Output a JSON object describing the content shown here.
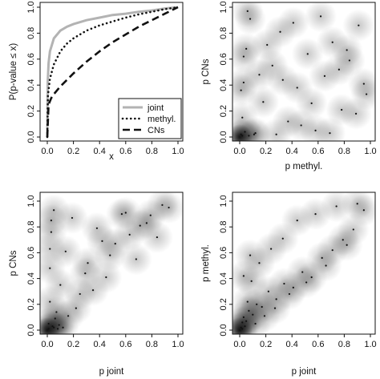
{
  "chart_data": [
    {
      "type": "line",
      "panel": "ecdf",
      "xlabel": "x",
      "ylabel": "P(p-value ≤ x)",
      "xlim": [
        0,
        1
      ],
      "ylim": [
        0,
        1
      ],
      "xticks": [
        "0.0",
        "0.2",
        "0.4",
        "0.6",
        "0.8",
        "1.0"
      ],
      "yticks": [
        "0.0",
        "0.2",
        "0.4",
        "0.6",
        "0.8",
        "1.0"
      ],
      "grid": false,
      "legend_position": "bottom-right",
      "series": [
        {
          "name": "joint",
          "style": "solid",
          "color": "#b3b3b3",
          "x": [
            0.0,
            0.003,
            0.01,
            0.02,
            0.05,
            0.1,
            0.15,
            0.2,
            0.3,
            0.4,
            0.5,
            0.6,
            0.7,
            0.8,
            0.9,
            1.0
          ],
          "y": [
            0.0,
            0.42,
            0.57,
            0.66,
            0.76,
            0.82,
            0.85,
            0.87,
            0.9,
            0.92,
            0.94,
            0.95,
            0.965,
            0.975,
            0.99,
            1.0
          ]
        },
        {
          "name": "methyl.",
          "style": "dotted",
          "color": "#111111",
          "x": [
            0.0,
            0.005,
            0.02,
            0.05,
            0.1,
            0.15,
            0.2,
            0.3,
            0.4,
            0.5,
            0.6,
            0.7,
            0.8,
            0.9,
            1.0
          ],
          "y": [
            0.0,
            0.32,
            0.45,
            0.56,
            0.66,
            0.72,
            0.76,
            0.82,
            0.86,
            0.89,
            0.92,
            0.945,
            0.965,
            0.985,
            1.0
          ]
        },
        {
          "name": "CNs",
          "style": "dashed",
          "color": "#111111",
          "x": [
            0.0,
            0.01,
            0.03,
            0.05,
            0.1,
            0.15,
            0.2,
            0.3,
            0.4,
            0.5,
            0.6,
            0.7,
            0.8,
            0.9,
            1.0
          ],
          "y": [
            0.0,
            0.25,
            0.3,
            0.33,
            0.39,
            0.44,
            0.49,
            0.58,
            0.66,
            0.73,
            0.79,
            0.85,
            0.9,
            0.95,
            1.0
          ]
        }
      ]
    },
    {
      "type": "scatter",
      "panel": "methyl-vs-cns",
      "xlabel": "p methyl.",
      "ylabel": "p CNs",
      "xlim": [
        0,
        1
      ],
      "ylim": [
        0,
        1
      ],
      "xticks": [
        "0.0",
        "0.2",
        "0.4",
        "0.6",
        "0.8",
        "1.0"
      ],
      "yticks": [
        "0.0",
        "0.2",
        "0.4",
        "0.6",
        "0.8",
        "1.0"
      ],
      "background": "smoothed point density (grayscale)",
      "points": {
        "x": [
          0.01,
          0.02,
          0.03,
          0.05,
          0.08,
          0.12,
          0.18,
          0.25,
          0.31,
          0.37,
          0.44,
          0.52,
          0.58,
          0.65,
          0.71,
          0.78,
          0.84,
          0.91,
          0.97,
          0.02,
          0.04,
          0.06,
          0.11,
          0.21,
          0.33,
          0.47,
          0.62,
          0.76,
          0.89,
          0.01,
          0.03,
          0.15,
          0.28,
          0.41,
          0.55,
          0.69,
          0.82,
          0.95,
          0.07
        ],
        "y": [
          0.02,
          0.15,
          0.42,
          0.68,
          0.91,
          0.03,
          0.27,
          0.55,
          0.81,
          0.12,
          0.38,
          0.64,
          0.05,
          0.47,
          0.73,
          0.21,
          0.59,
          0.86,
          0.33,
          0.01,
          0.04,
          0.97,
          0.02,
          0.71,
          0.44,
          0.09,
          0.93,
          0.52,
          0.18,
          0.36,
          0.62,
          0.48,
          0.02,
          0.88,
          0.26,
          0.03,
          0.67,
          0.41,
          0.01
        ]
      }
    },
    {
      "type": "scatter",
      "panel": "joint-vs-cns",
      "xlabel": "p joint",
      "ylabel": "p CNs",
      "xlim": [
        0,
        1
      ],
      "ylim": [
        0,
        1
      ],
      "xticks": [
        "0.0",
        "0.2",
        "0.4",
        "0.6",
        "0.8",
        "1.0"
      ],
      "yticks": [
        "0.0",
        "0.2",
        "0.4",
        "0.6",
        "0.8",
        "1.0"
      ],
      "background": "smoothed point density (grayscale)",
      "points": {
        "x": [
          0.01,
          0.02,
          0.02,
          0.03,
          0.05,
          0.07,
          0.1,
          0.14,
          0.19,
          0.25,
          0.31,
          0.38,
          0.45,
          0.52,
          0.6,
          0.68,
          0.76,
          0.84,
          0.93,
          0.01,
          0.04,
          0.06,
          0.09,
          0.12,
          0.22,
          0.35,
          0.48,
          0.63,
          0.79,
          0.02,
          0.03,
          0.16,
          0.29,
          0.42,
          0.57,
          0.71,
          0.88,
          0.05,
          0.08
        ],
        "y": [
          0.05,
          0.22,
          0.48,
          0.76,
          0.93,
          0.14,
          0.35,
          0.61,
          0.87,
          0.28,
          0.52,
          0.79,
          0.41,
          0.67,
          0.91,
          0.55,
          0.83,
          0.72,
          0.95,
          0.01,
          0.03,
          0.09,
          0.04,
          0.02,
          0.17,
          0.31,
          0.58,
          0.74,
          0.89,
          0.63,
          0.85,
          0.11,
          0.44,
          0.69,
          0.9,
          0.81,
          0.97,
          0.02,
          0.01
        ]
      }
    },
    {
      "type": "scatter",
      "panel": "joint-vs-methyl",
      "xlabel": "p joint",
      "ylabel": "p methyl.",
      "xlim": [
        0,
        1
      ],
      "ylim": [
        0,
        1
      ],
      "xticks": [
        "0.0",
        "0.2",
        "0.4",
        "0.6",
        "0.8",
        "1.0"
      ],
      "yticks": [
        "0.0",
        "0.2",
        "0.4",
        "0.6",
        "0.8",
        "1.0"
      ],
      "background": "smoothed point density (grayscale)",
      "points": {
        "x": [
          0.01,
          0.02,
          0.03,
          0.05,
          0.07,
          0.1,
          0.13,
          0.17,
          0.22,
          0.28,
          0.34,
          0.41,
          0.48,
          0.55,
          0.63,
          0.71,
          0.79,
          0.87,
          0.95,
          0.02,
          0.04,
          0.06,
          0.09,
          0.15,
          0.24,
          0.33,
          0.44,
          0.58,
          0.74,
          0.9,
          0.03,
          0.08,
          0.12,
          0.19,
          0.27,
          0.38,
          0.51,
          0.66,
          0.82
        ],
        "y": [
          0.02,
          0.06,
          0.1,
          0.07,
          0.15,
          0.12,
          0.2,
          0.18,
          0.3,
          0.24,
          0.36,
          0.33,
          0.45,
          0.41,
          0.56,
          0.62,
          0.7,
          0.78,
          0.93,
          0.01,
          0.03,
          0.22,
          0.38,
          0.52,
          0.63,
          0.71,
          0.85,
          0.9,
          0.96,
          0.98,
          0.42,
          0.58,
          0.05,
          0.11,
          0.17,
          0.28,
          0.37,
          0.5,
          0.66
        ]
      }
    }
  ]
}
